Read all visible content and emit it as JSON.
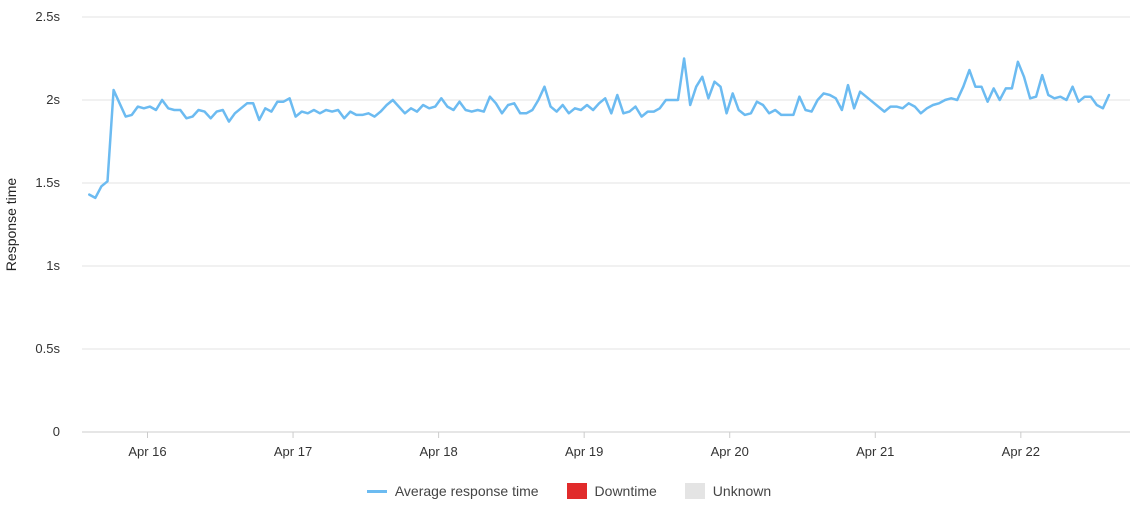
{
  "chart_data": {
    "type": "line",
    "ylabel": "Response time",
    "xlabel": "",
    "ylim": [
      0,
      2.5
    ],
    "y_ticks": [
      {
        "value": 0,
        "label": "0"
      },
      {
        "value": 0.5,
        "label": "0.5s"
      },
      {
        "value": 1,
        "label": "1s"
      },
      {
        "value": 1.5,
        "label": "1.5s"
      },
      {
        "value": 2,
        "label": "2s"
      },
      {
        "value": 2.5,
        "label": "2.5s"
      }
    ],
    "x_ticks": [
      "Apr 16",
      "Apr 17",
      "Apr 18",
      "Apr 19",
      "Apr 20",
      "Apr 21",
      "Apr 22"
    ],
    "x_range_days": [
      15.55,
      22.75
    ],
    "grid": true,
    "legend_position": "bottom",
    "series": [
      {
        "name": "Average response time",
        "color": "#6cbbf1",
        "x_start_day": 15.6,
        "step_days": 0.0417,
        "values": [
          1.43,
          1.41,
          1.48,
          1.51,
          2.06,
          1.98,
          1.9,
          1.91,
          1.96,
          1.95,
          1.96,
          1.94,
          2.0,
          1.95,
          1.94,
          1.94,
          1.89,
          1.9,
          1.94,
          1.93,
          1.89,
          1.93,
          1.94,
          1.87,
          1.92,
          1.95,
          1.98,
          1.98,
          1.88,
          1.95,
          1.93,
          1.99,
          1.99,
          2.01,
          1.9,
          1.93,
          1.92,
          1.94,
          1.92,
          1.94,
          1.93,
          1.94,
          1.89,
          1.93,
          1.91,
          1.91,
          1.92,
          1.9,
          1.93,
          1.97,
          2.0,
          1.96,
          1.92,
          1.95,
          1.93,
          1.97,
          1.95,
          1.96,
          2.01,
          1.96,
          1.94,
          1.99,
          1.94,
          1.93,
          1.94,
          1.93,
          2.02,
          1.98,
          1.92,
          1.97,
          1.98,
          1.92,
          1.92,
          1.94,
          2.0,
          2.08,
          1.96,
          1.93,
          1.97,
          1.92,
          1.95,
          1.94,
          1.97,
          1.94,
          1.98,
          2.01,
          1.92,
          2.03,
          1.92,
          1.93,
          1.96,
          1.9,
          1.93,
          1.93,
          1.95,
          2.0,
          2.0,
          2.0,
          2.25,
          1.97,
          2.08,
          2.14,
          2.01,
          2.11,
          2.08,
          1.92,
          2.04,
          1.94,
          1.91,
          1.92,
          1.99,
          1.97,
          1.92,
          1.94,
          1.91,
          1.91,
          1.91,
          2.02,
          1.94,
          1.93,
          2.0,
          2.04,
          2.03,
          2.01,
          1.94,
          2.09,
          1.95,
          2.05,
          2.02,
          1.99,
          1.96,
          1.93,
          1.96,
          1.96,
          1.95,
          1.98,
          1.96,
          1.92,
          1.95,
          1.97,
          1.98,
          2.0,
          2.01,
          2.0,
          2.08,
          2.18,
          2.08,
          2.08,
          1.99,
          2.07,
          2.0,
          2.07,
          2.07,
          2.23,
          2.14,
          2.01,
          2.02,
          2.15,
          2.03,
          2.01,
          2.02,
          2.0,
          2.08,
          1.99,
          2.02,
          2.02,
          1.97,
          1.95,
          2.03
        ]
      }
    ]
  },
  "legend": {
    "items": [
      {
        "label": "Average response time",
        "color": "#6cbbf1",
        "kind": "line"
      },
      {
        "label": "Downtime",
        "color": "#e12b2b",
        "kind": "box"
      },
      {
        "label": "Unknown",
        "color": "#e4e4e4",
        "kind": "box"
      }
    ]
  }
}
